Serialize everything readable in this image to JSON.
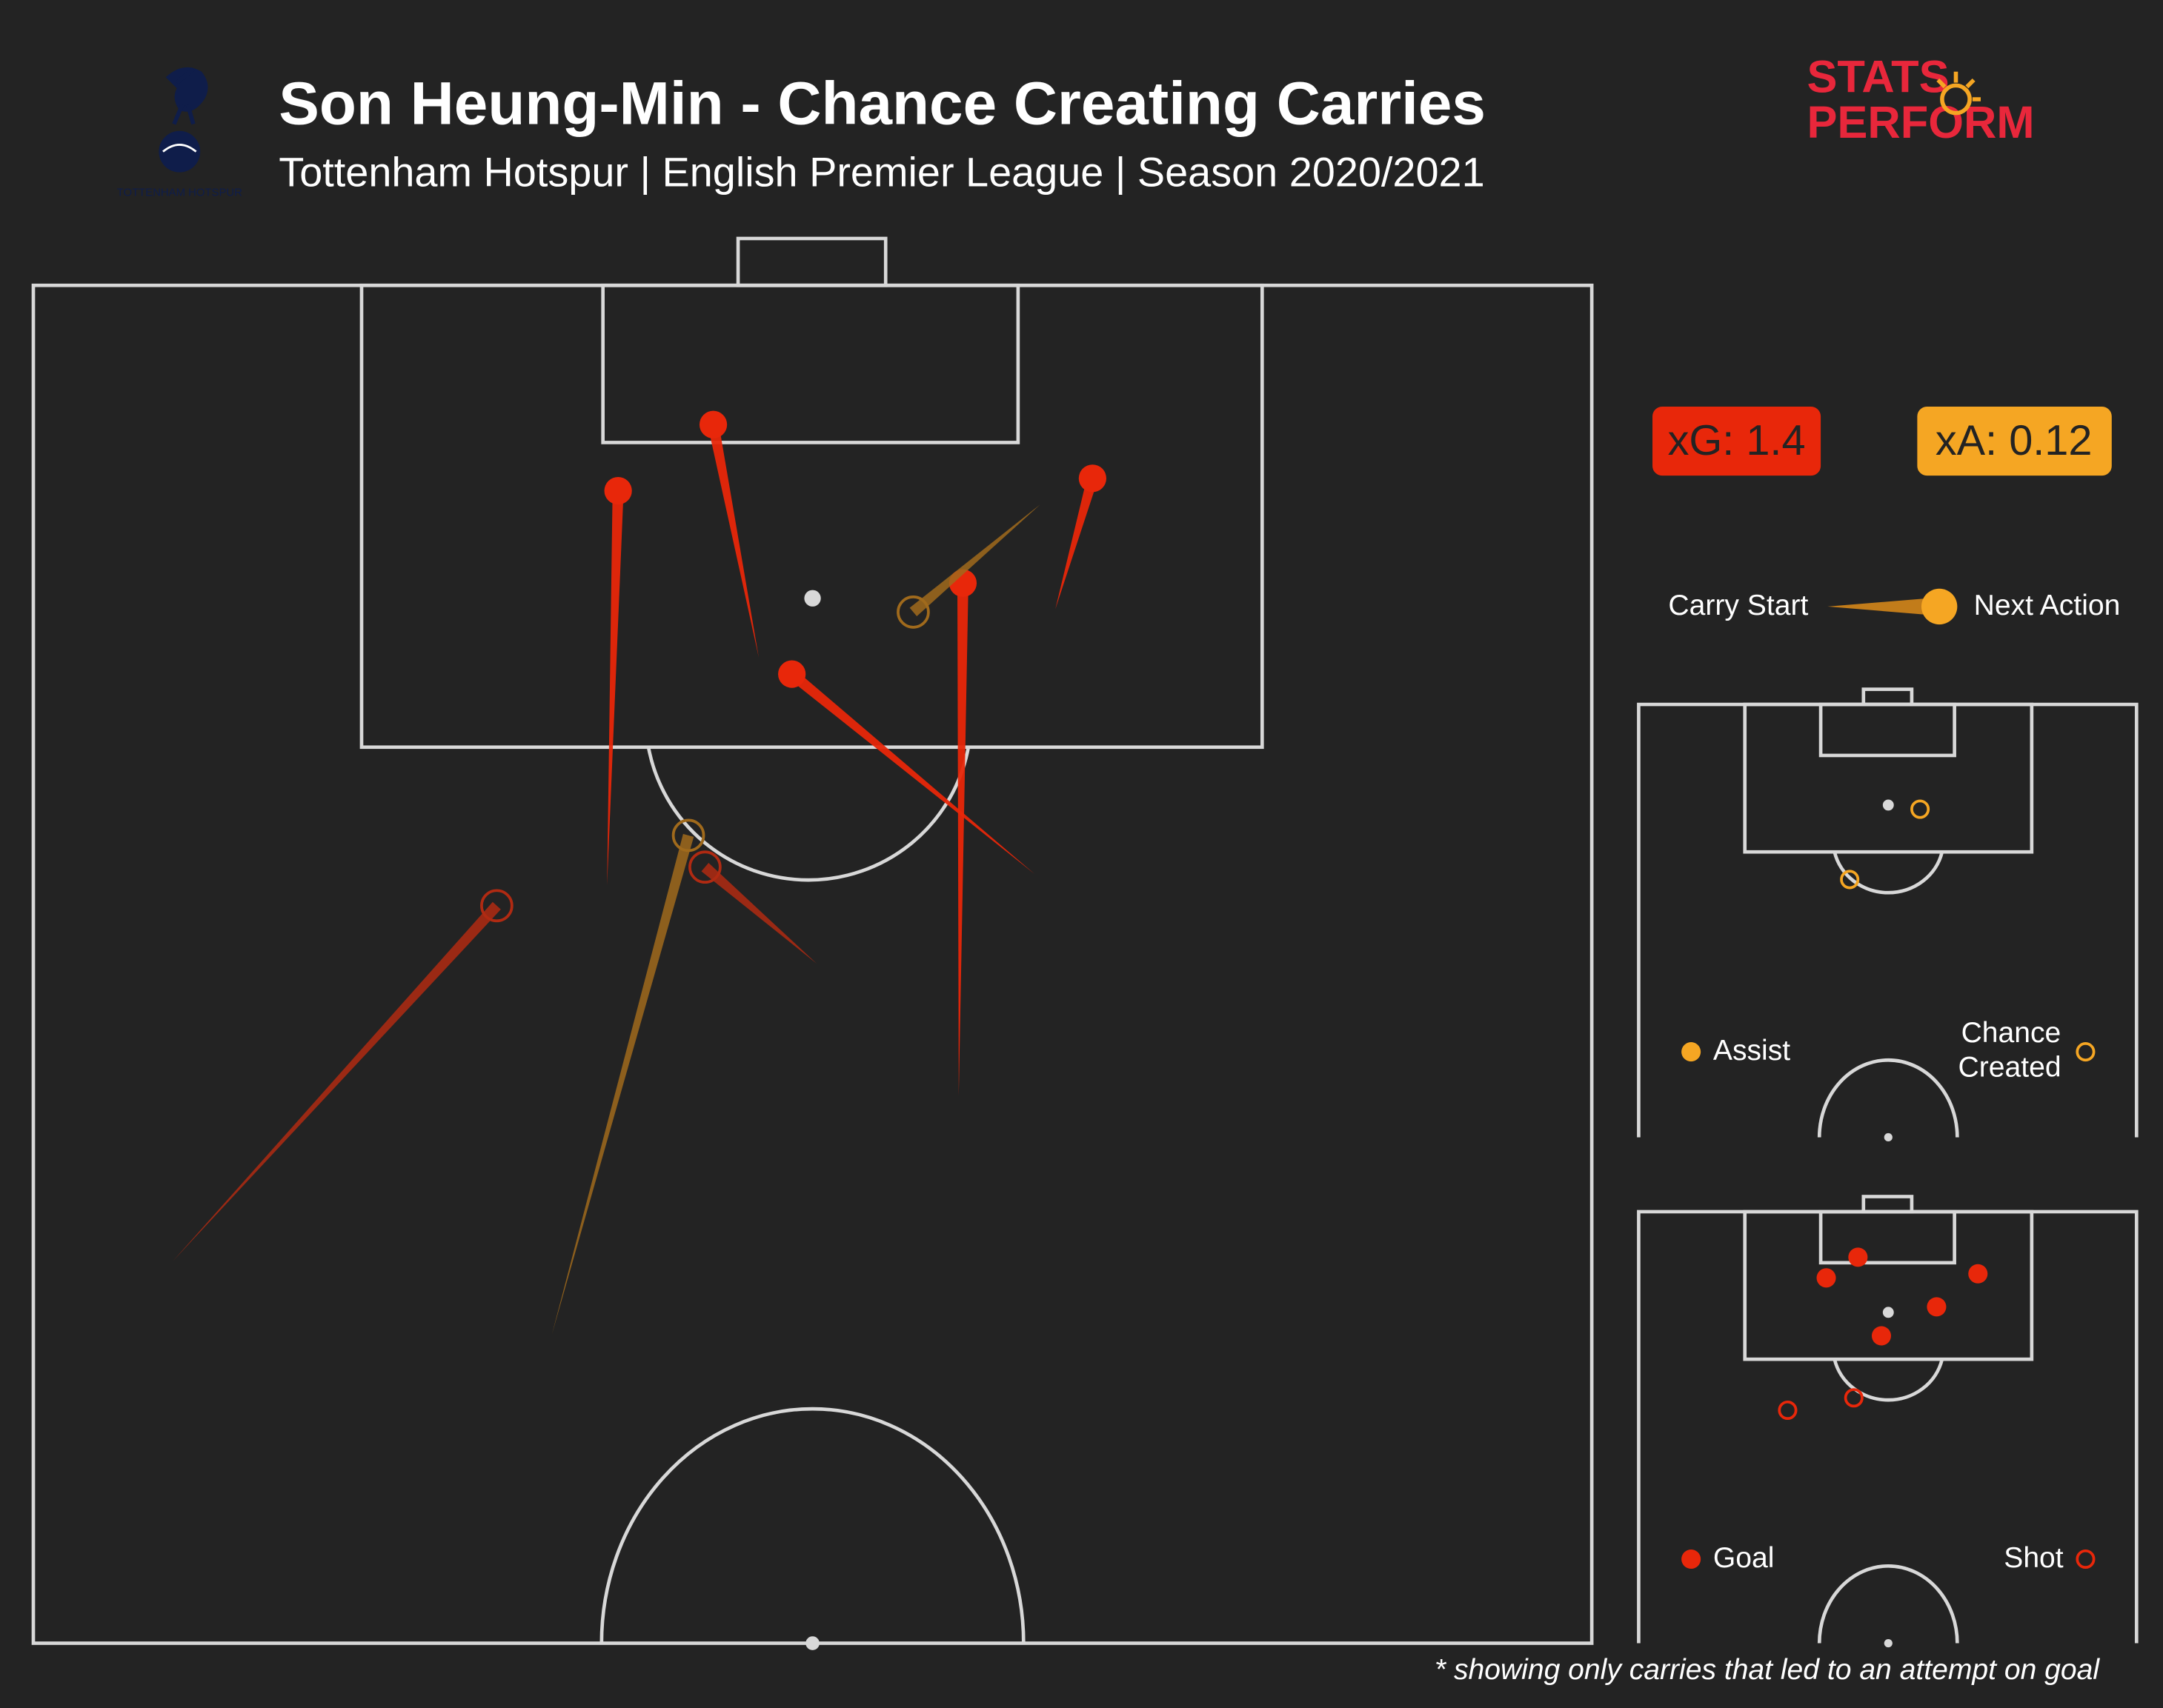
{
  "header": {
    "title": "Son Heung-Min - Chance Creating Carries",
    "subtitle": "Tottenham Hotspur | English Premier League | Season 2020/2021",
    "logo_text": "TOTTENHAM HOTSPUR",
    "brand_line1": "STATS",
    "brand_line2": "PERFORM"
  },
  "badges": {
    "xg": "xG: 1.4",
    "xa": "xA: 0.12"
  },
  "legend": {
    "carry_start": "Carry Start",
    "next_action": "Next Action",
    "assist": "Assist",
    "chance_created": "Chance Created",
    "goal": "Goal",
    "shot": "Shot"
  },
  "footnote": "* showing only carries that led to an attempt on goal",
  "colors": {
    "background": "#232323",
    "goal_red": "#e8270a",
    "assist_orange": "#f5a623",
    "brand_red": "#e8273b",
    "brand_orange": "#f5a623",
    "tottenham_navy": "#0f1d4a"
  },
  "chart_data": {
    "type": "scatter",
    "title": "Son Heung-Min - Chance Creating Carries",
    "pitch": "half pitch, vertical, attacking upward",
    "carries": [
      {
        "start": [
          125,
          915
        ],
        "end": [
          360,
          657
        ],
        "outcome": "shot"
      },
      {
        "start": [
          440,
          642
        ],
        "end": [
          448,
          356
        ],
        "outcome": "goal"
      },
      {
        "start": [
          550,
          477
        ],
        "end": [
          517,
          308
        ],
        "outcome": "goal"
      },
      {
        "start": [
          750,
          634
        ],
        "end": [
          574,
          489
        ],
        "outcome": "goal"
      },
      {
        "start": [
          592,
          699
        ],
        "end": [
          511,
          629
        ],
        "outcome": "shot"
      },
      {
        "start": [
          695,
          795
        ],
        "end": [
          698,
          423
        ],
        "outcome": "goal"
      },
      {
        "start": [
          765,
          442
        ],
        "end": [
          792,
          347
        ],
        "outcome": "goal"
      },
      {
        "start": [
          400,
          968
        ],
        "end": [
          499,
          606
        ],
        "outcome": "chance_created"
      },
      {
        "start": [
          754,
          366
        ],
        "end": [
          662,
          444
        ],
        "outcome": "chance_created"
      }
    ],
    "inset_chances": [
      {
        "pos": [
          1392,
          587
        ],
        "outcome": "chance_created"
      },
      {
        "pos": [
          1341,
          638
        ],
        "outcome": "chance_created"
      }
    ],
    "inset_shots": [
      {
        "pos": [
          1347,
          912
        ],
        "outcome": "goal"
      },
      {
        "pos": [
          1324,
          927
        ],
        "outcome": "goal"
      },
      {
        "pos": [
          1434,
          924
        ],
        "outcome": "goal"
      },
      {
        "pos": [
          1404,
          948
        ],
        "outcome": "goal"
      },
      {
        "pos": [
          1364,
          969
        ],
        "outcome": "goal"
      },
      {
        "pos": [
          1296,
          1023
        ],
        "outcome": "shot"
      },
      {
        "pos": [
          1344,
          1014
        ],
        "outcome": "shot"
      }
    ]
  }
}
